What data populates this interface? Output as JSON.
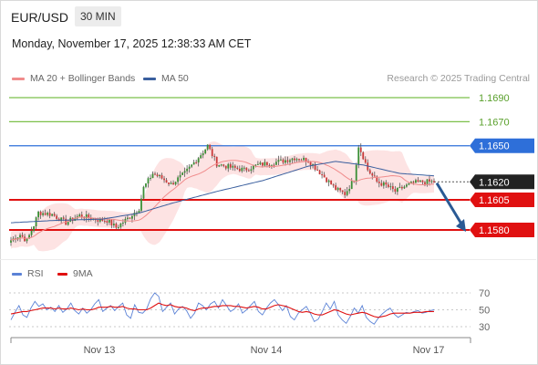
{
  "header": {
    "symbol": "EUR/USD",
    "timeframe": "30 MIN",
    "datetime": "Monday, November 17, 2025 12:38:33 AM CET"
  },
  "legend": {
    "ma20": {
      "label": "MA 20 + Bollinger Bands",
      "color": "#f08c8c"
    },
    "ma50": {
      "label": "MA 50",
      "color": "#3a5f9e"
    },
    "credit": "Research © 2025 Trading Central"
  },
  "rsi_legend": {
    "rsi": {
      "label": "RSI",
      "color": "#5b82d6"
    },
    "ma9": {
      "label": "9MA",
      "color": "#e01010"
    }
  },
  "chart_data": [
    {
      "type": "candlestick",
      "title": "EUR/USD 30 MIN",
      "x_ticks": [
        "Nov 13",
        "Nov 14",
        "Nov 17"
      ],
      "ylim": [
        1.156,
        1.17
      ],
      "levels": [
        {
          "value": 1.169,
          "label": "1.1690",
          "color": "#7cc04a",
          "style": "line"
        },
        {
          "value": 1.167,
          "label": "1.1670",
          "color": "#7cc04a",
          "style": "line"
        },
        {
          "value": 1.165,
          "label": "1.1650",
          "color": "#2e6fd9",
          "style": "line"
        },
        {
          "value": 1.162,
          "label": "1.1620",
          "color": "#222222",
          "style": "last-price"
        },
        {
          "value": 1.1605,
          "label": "1.1605",
          "color": "#e01010",
          "style": "line"
        },
        {
          "value": 1.158,
          "label": "1.1580",
          "color": "#e01010",
          "style": "line"
        }
      ],
      "anchors": [
        [
          0,
          1.15715
        ],
        [
          4,
          1.1576
        ],
        [
          7,
          1.1571
        ],
        [
          10,
          1.1584
        ],
        [
          12,
          1.15945
        ],
        [
          18,
          1.1593
        ],
        [
          24,
          1.1586
        ],
        [
          30,
          1.1592
        ],
        [
          38,
          1.15885
        ],
        [
          42,
          1.1588
        ],
        [
          46,
          1.1582
        ],
        [
          52,
          1.1591
        ],
        [
          56,
          1.1598
        ],
        [
          58,
          1.1615
        ],
        [
          62,
          1.1627
        ],
        [
          66,
          1.1623
        ],
        [
          70,
          1.1618
        ],
        [
          76,
          1.1627
        ],
        [
          80,
          1.1636
        ],
        [
          84,
          1.1645
        ],
        [
          86,
          1.165
        ],
        [
          90,
          1.1635
        ],
        [
          96,
          1.1632
        ],
        [
          102,
          1.163
        ],
        [
          108,
          1.1634
        ],
        [
          114,
          1.1636
        ],
        [
          118,
          1.1637
        ],
        [
          124,
          1.164
        ],
        [
          130,
          1.1638
        ],
        [
          134,
          1.163
        ],
        [
          138,
          1.1622
        ],
        [
          142,
          1.1614
        ],
        [
          146,
          1.161
        ],
        [
          150,
          1.1622
        ],
        [
          152,
          1.165
        ],
        [
          154,
          1.1641
        ],
        [
          156,
          1.163
        ],
        [
          160,
          1.162
        ],
        [
          164,
          1.1617
        ],
        [
          168,
          1.1612
        ],
        [
          172,
          1.1616
        ],
        [
          176,
          1.1619
        ],
        [
          180,
          1.162
        ],
        [
          185,
          1.162
        ]
      ],
      "ma50_anchors": [
        [
          0,
          1.1586
        ],
        [
          20,
          1.1588
        ],
        [
          40,
          1.1589
        ],
        [
          56,
          1.1594
        ],
        [
          70,
          1.1602
        ],
        [
          90,
          1.1612
        ],
        [
          110,
          1.1621
        ],
        [
          130,
          1.1633
        ],
        [
          142,
          1.1637
        ],
        [
          154,
          1.1634
        ],
        [
          170,
          1.1627
        ],
        [
          185,
          1.1625
        ]
      ],
      "forecast": {
        "from": 1.1619,
        "to": 1.158
      }
    },
    {
      "type": "line",
      "title": "RSI",
      "yticks": [
        30,
        50,
        70
      ],
      "ylim": [
        20,
        80
      ],
      "series": [
        {
          "name": "RSI",
          "color": "#5b82d6",
          "values": [
            38,
            47,
            55,
            44,
            41,
            52,
            60,
            54,
            57,
            50,
            53,
            48,
            55,
            47,
            51,
            58,
            49,
            45,
            52,
            46,
            50,
            57,
            62,
            48,
            52,
            55,
            49,
            54,
            58,
            44,
            40,
            56,
            47,
            46,
            51,
            63,
            70,
            66,
            48,
            53,
            58,
            45,
            51,
            54,
            49,
            40,
            46,
            58,
            55,
            50,
            57,
            60,
            52,
            62,
            55,
            48,
            51,
            57,
            46,
            50,
            55,
            60,
            48,
            44,
            52,
            58,
            62,
            56,
            49,
            55,
            42,
            38,
            46,
            50,
            54,
            46,
            36,
            39,
            48,
            58,
            51,
            60,
            44,
            38,
            34,
            42,
            52,
            46,
            55,
            41,
            36,
            33,
            40,
            45,
            49,
            52,
            45,
            41,
            44,
            47,
            46,
            48,
            49,
            46,
            47,
            49,
            50
          ]
        },
        {
          "name": "9MA",
          "color": "#e01010",
          "values": [
            45,
            46,
            47,
            48,
            48,
            49,
            50,
            51,
            52,
            52,
            52,
            51,
            52,
            51,
            51,
            52,
            51,
            50,
            51,
            50,
            50,
            51,
            53,
            53,
            53,
            54,
            53,
            53,
            54,
            52,
            51,
            51,
            50,
            50,
            50,
            52,
            55,
            58,
            56,
            55,
            56,
            54,
            53,
            53,
            52,
            50,
            49,
            51,
            52,
            52,
            53,
            54,
            54,
            55,
            55,
            55,
            54,
            54,
            53,
            52,
            53,
            54,
            53,
            51,
            51,
            53,
            55,
            56,
            55,
            54,
            52,
            50,
            48,
            47,
            48,
            47,
            45,
            44,
            44,
            46,
            48,
            50,
            49,
            47,
            45,
            44,
            45,
            46,
            47,
            46,
            44,
            42,
            41,
            42,
            43,
            45,
            46,
            46,
            46,
            46,
            46,
            47,
            47,
            47,
            48,
            48,
            48
          ]
        }
      ]
    }
  ]
}
